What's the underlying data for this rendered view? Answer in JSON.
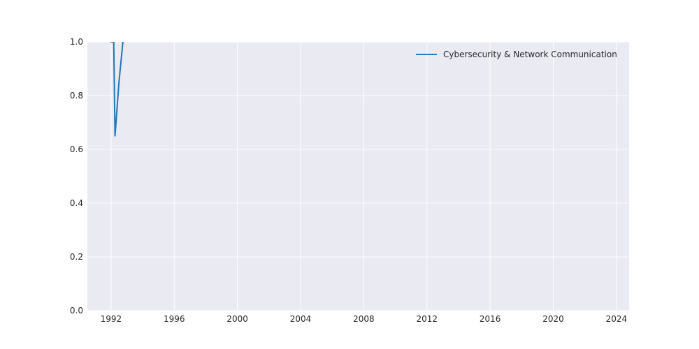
{
  "chart_data": {
    "type": "line",
    "title": "",
    "xlabel": "",
    "ylabel": "",
    "x_ticks": [
      "1992",
      "1996",
      "2000",
      "2004",
      "2008",
      "2012",
      "2016",
      "2020",
      "2024"
    ],
    "y_ticks": [
      "0.0",
      "0.2",
      "0.4",
      "0.6",
      "0.8",
      "1.0"
    ],
    "xlim": [
      1990.5,
      2024.8
    ],
    "ylim": [
      0,
      1.0
    ],
    "grid": true,
    "legend_position": "top-right",
    "series": [
      {
        "name": "Cybersecurity & Network Communication",
        "color": "#1f77b4",
        "x": [
          1991.5,
          1992.0,
          1992.17,
          1992.25,
          1992.5,
          1992.75,
          1993.0
        ],
        "y": [
          1.05,
          1.0,
          1.0,
          0.65,
          0.85,
          1.0,
          1.1
        ]
      }
    ]
  }
}
